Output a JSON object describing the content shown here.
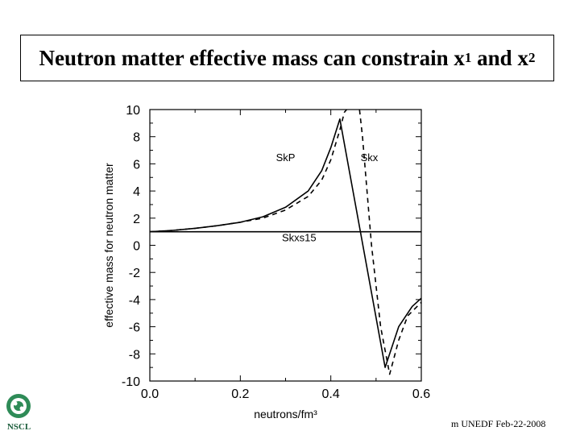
{
  "slide": {
    "title": {
      "main": "Neutron matter effective mass can constrain x",
      "sub1": "1",
      "and": " and x",
      "sub2": "2"
    },
    "footer": "m UNEDF Feb-22-2008",
    "logo_text": "NSCL"
  },
  "chart_data": {
    "type": "line",
    "title": "",
    "xlabel": "neutrons/fm³",
    "ylabel": "effective mass for neutron matter",
    "xlim": [
      0.0,
      0.6
    ],
    "ylim": [
      -10,
      10
    ],
    "xticks": [
      "0.0",
      "0.2",
      "0.4",
      "0.6"
    ],
    "yticks": [
      "10",
      "8",
      "6",
      "4",
      "2",
      "0",
      "-2",
      "-4",
      "-6",
      "-8",
      "-10"
    ],
    "grid": false,
    "series": [
      {
        "name": "SkP",
        "style": "solid",
        "points": [
          [
            0.0,
            1.0
          ],
          [
            0.05,
            1.1
          ],
          [
            0.1,
            1.25
          ],
          [
            0.15,
            1.45
          ],
          [
            0.2,
            1.7
          ],
          [
            0.25,
            2.1
          ],
          [
            0.3,
            2.8
          ],
          [
            0.35,
            4.0
          ],
          [
            0.38,
            5.5
          ],
          [
            0.4,
            7.2
          ],
          [
            0.42,
            9.3
          ],
          [
            0.52,
            -9.0
          ],
          [
            0.55,
            -6.0
          ],
          [
            0.58,
            -4.5
          ],
          [
            0.6,
            -3.9
          ]
        ]
      },
      {
        "name": "Skx",
        "style": "dashed",
        "points": [
          [
            0.0,
            1.0
          ],
          [
            0.05,
            1.1
          ],
          [
            0.1,
            1.25
          ],
          [
            0.15,
            1.45
          ],
          [
            0.2,
            1.7
          ],
          [
            0.25,
            2.0
          ],
          [
            0.3,
            2.6
          ],
          [
            0.35,
            3.6
          ],
          [
            0.38,
            4.8
          ],
          [
            0.4,
            6.3
          ],
          [
            0.42,
            8.5
          ],
          [
            0.43,
            9.8
          ],
          [
            0.46,
            11
          ],
          [
            0.47,
            8.0
          ],
          [
            0.49,
            0.0
          ],
          [
            0.51,
            -6.0
          ],
          [
            0.53,
            -9.5
          ],
          [
            0.55,
            -7.0
          ],
          [
            0.57,
            -5.2
          ],
          [
            0.6,
            -4.2
          ]
        ]
      },
      {
        "name": "Skxs15",
        "style": "solid",
        "points": [
          [
            0.0,
            1.0
          ],
          [
            0.6,
            1.0
          ]
        ]
      }
    ],
    "annotations": [
      {
        "text": "SkP",
        "x": 0.3,
        "y": 6.2
      },
      {
        "text": "Skx",
        "x": 0.485,
        "y": 6.2
      },
      {
        "text": "Skxs15",
        "x": 0.33,
        "y": 0.3
      }
    ]
  }
}
